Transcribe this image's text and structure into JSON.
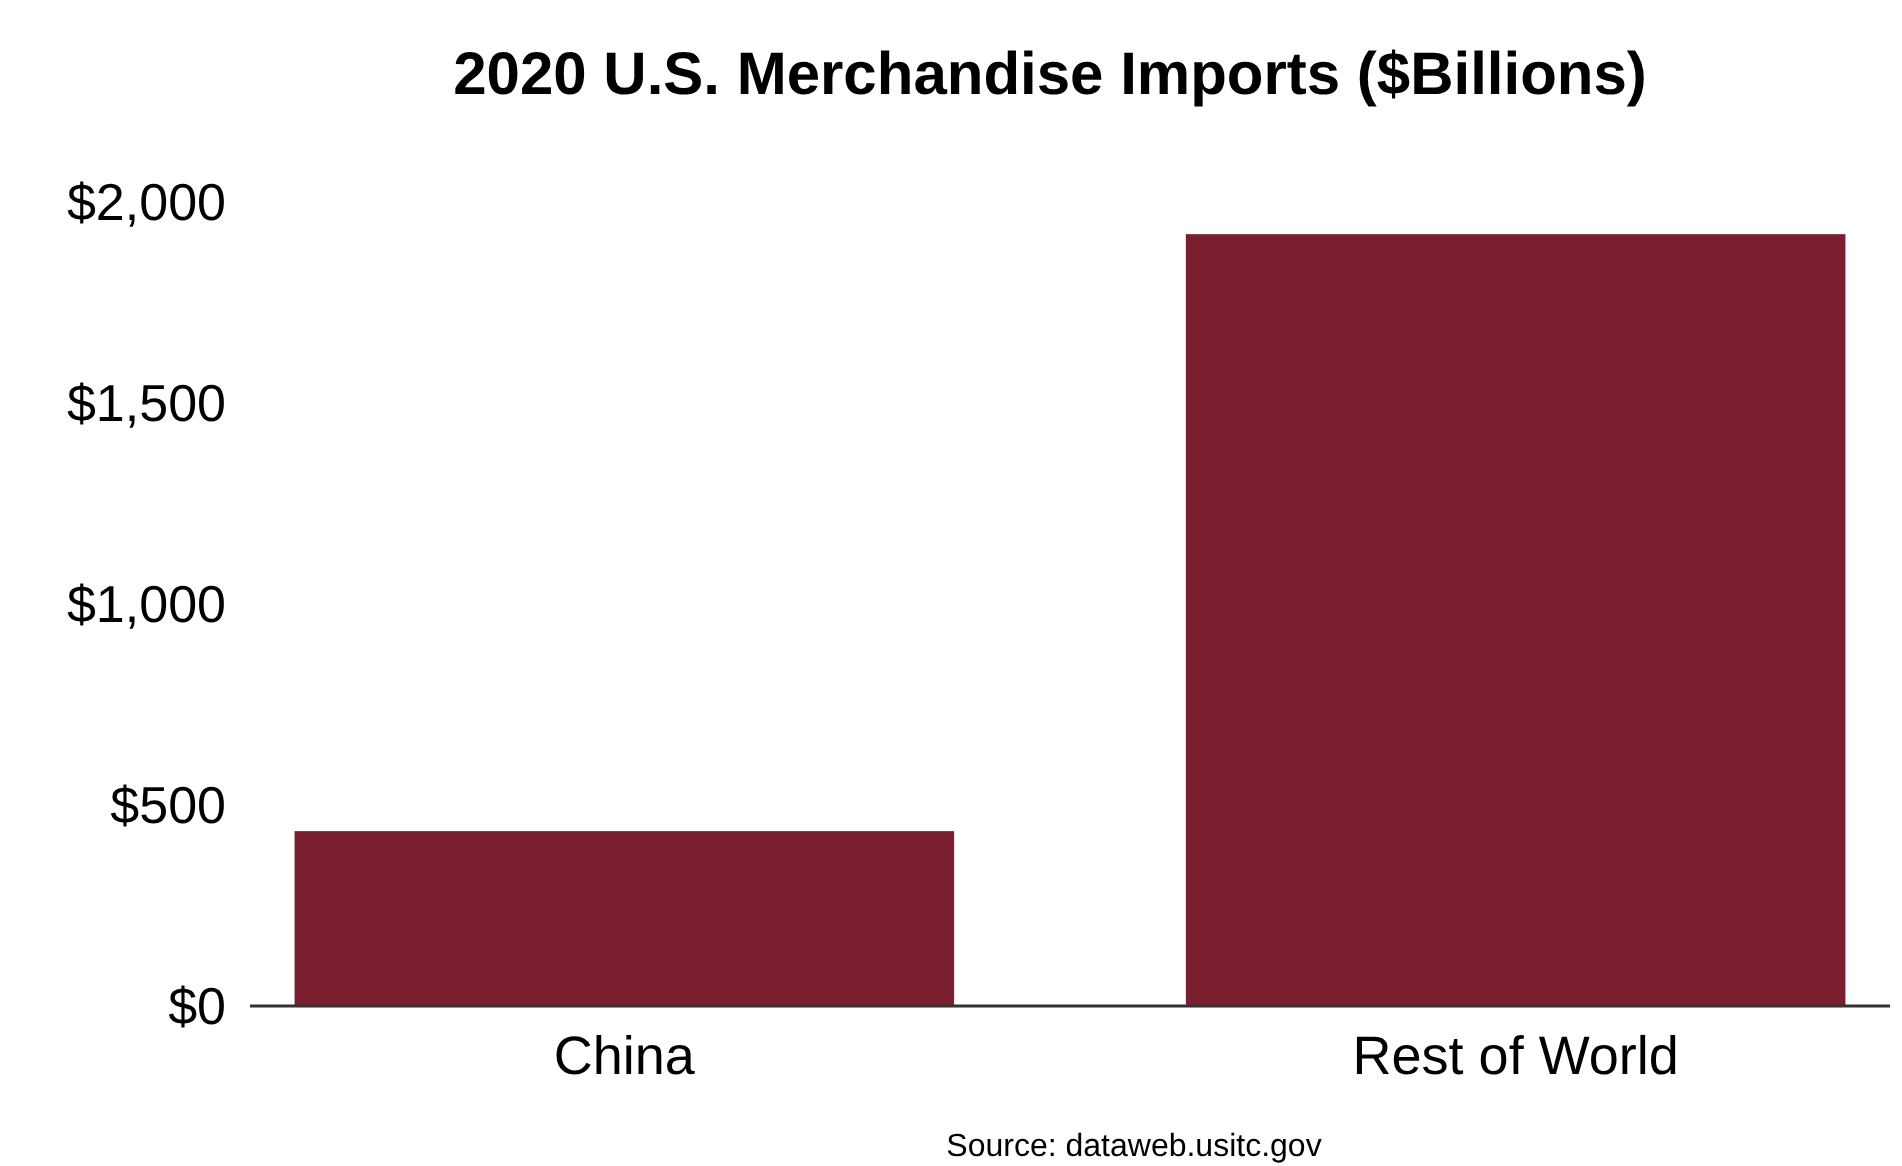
{
  "chart_data": {
    "type": "bar",
    "title": "2020 U.S. Merchandise Imports ($Billions)",
    "categories": [
      "China",
      "Rest of World"
    ],
    "values": [
      435,
      1920
    ],
    "color": "#7a1f30",
    "ylim": [
      0,
      2000
    ],
    "yticks": [
      {
        "value": 0,
        "label": "$0"
      },
      {
        "value": 500,
        "label": "$500"
      },
      {
        "value": 1000,
        "label": "$1,000"
      },
      {
        "value": 1500,
        "label": "$1,500"
      },
      {
        "value": 2000,
        "label": "$2,000"
      }
    ],
    "grid": false,
    "annotations": [
      "Source: dataweb.usitc.gov"
    ]
  }
}
